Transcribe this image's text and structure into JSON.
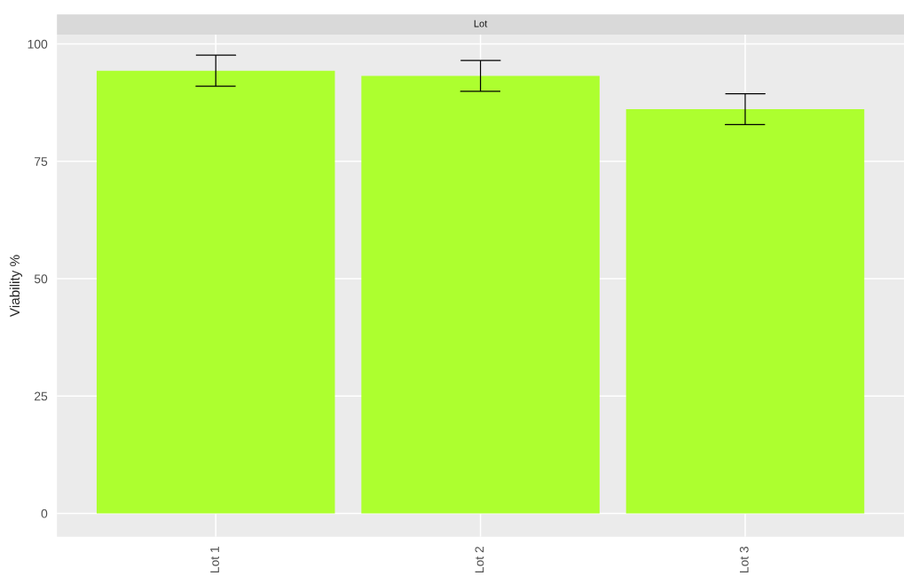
{
  "chart_data": {
    "type": "bar",
    "title": "Lot",
    "ylabel": "Viability %",
    "categories": [
      "Lot 1",
      "Lot 2",
      "Lot 3"
    ],
    "values": [
      94.3,
      93.2,
      86.1
    ],
    "errors": [
      3.3,
      3.3,
      3.3
    ],
    "color": "#adff2f",
    "ylim": [
      -5,
      102
    ],
    "yticks": [
      0,
      25,
      50,
      75,
      100
    ],
    "grid": true
  }
}
